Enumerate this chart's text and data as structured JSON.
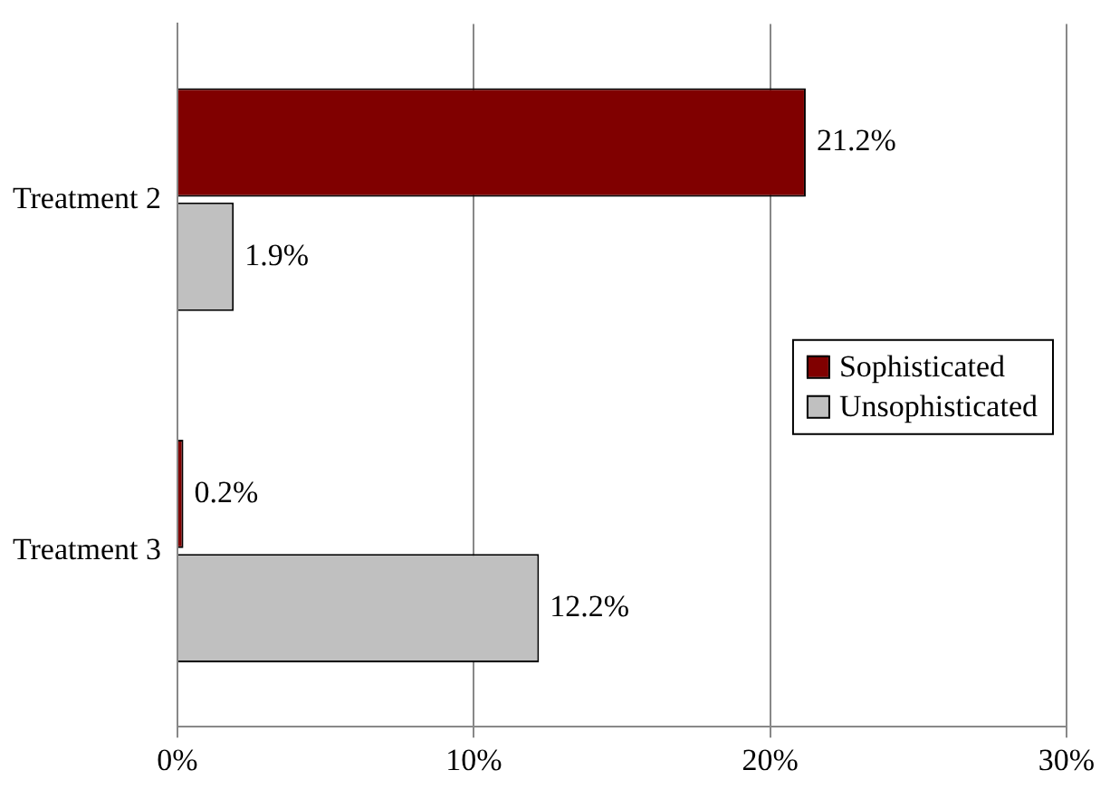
{
  "chart_data": {
    "type": "bar",
    "orientation": "horizontal",
    "categories": [
      "Treatment 2",
      "Treatment 3"
    ],
    "series": [
      {
        "name": "Sophisticated",
        "color": "#800000",
        "values": [
          21.2,
          0.2
        ],
        "value_labels": [
          "21.2%",
          "0.2%"
        ]
      },
      {
        "name": "Unsophisticated",
        "color": "#c0c0c0",
        "values": [
          1.9,
          12.2
        ],
        "value_labels": [
          "1.9%",
          "12.2%"
        ]
      }
    ],
    "xlim": [
      0,
      30
    ],
    "xticks": [
      {
        "value": 0,
        "label": "0%"
      },
      {
        "value": 10,
        "label": "10%"
      },
      {
        "value": 20,
        "label": "20%"
      },
      {
        "value": 30,
        "label": "30%"
      }
    ],
    "grid": "x",
    "legend": "right"
  }
}
